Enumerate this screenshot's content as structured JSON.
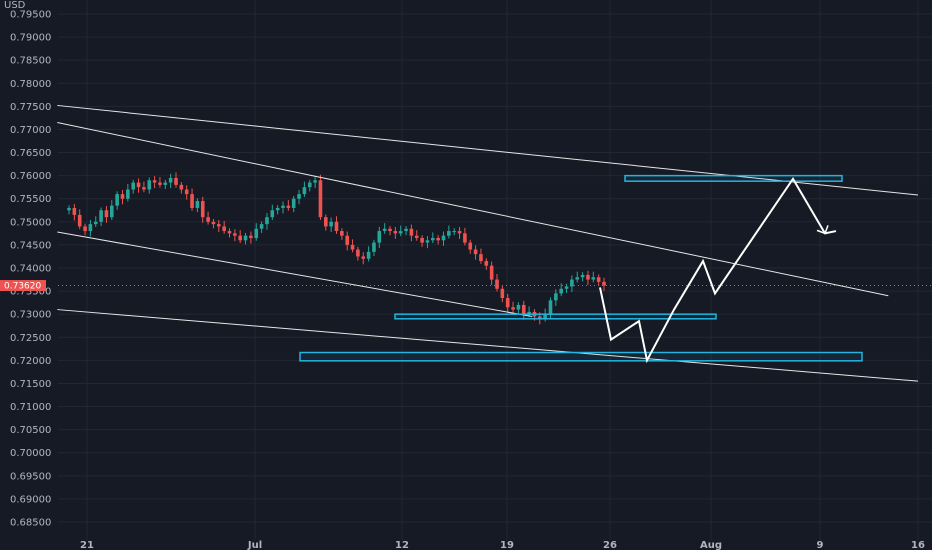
{
  "currency_label": "USD",
  "price_axis": {
    "ticks": [
      "0.79500",
      "0.79000",
      "0.78500",
      "0.78000",
      "0.77500",
      "0.77000",
      "0.76500",
      "0.76000",
      "0.75500",
      "0.75000",
      "0.74500",
      "0.74000",
      "0.73500",
      "0.73000",
      "0.72500",
      "0.72000",
      "0.71500",
      "0.71000",
      "0.70500",
      "0.70000",
      "0.69500",
      "0.69000",
      "0.68500"
    ],
    "current_price": "0.73620",
    "current_price_value": 0.7362
  },
  "time_axis": {
    "labels": [
      "21",
      "Jul",
      "12",
      "19",
      "26",
      "Aug",
      "9",
      "16"
    ]
  },
  "colors": {
    "background": "#161a25",
    "bull": "#26a69a",
    "bear": "#ef5350",
    "zone": "#22b5e0",
    "line": "#e6e6e6",
    "price_tag": "#ef5350",
    "grid": "#232733"
  },
  "chart_data": {
    "type": "candlestick",
    "symbol_quote": "USD",
    "ylim": [
      0.68,
      0.797
    ],
    "grid": true,
    "close_series": [
      0.753,
      0.7515,
      0.749,
      0.748,
      0.7495,
      0.75,
      0.7525,
      0.751,
      0.7535,
      0.756,
      0.755,
      0.757,
      0.7585,
      0.7575,
      0.757,
      0.759,
      0.7585,
      0.758,
      0.7585,
      0.7595,
      0.758,
      0.757,
      0.756,
      0.753,
      0.7545,
      0.751,
      0.75,
      0.7495,
      0.749,
      0.748,
      0.7475,
      0.747,
      0.746,
      0.747,
      0.7465,
      0.7485,
      0.7495,
      0.751,
      0.7525,
      0.753,
      0.7535,
      0.753,
      0.755,
      0.756,
      0.7575,
      0.7585,
      0.759,
      0.751,
      0.749,
      0.75,
      0.748,
      0.747,
      0.745,
      0.744,
      0.7425,
      0.742,
      0.7435,
      0.7455,
      0.748,
      0.7485,
      0.748,
      0.7475,
      0.748,
      0.7485,
      0.747,
      0.7465,
      0.7455,
      0.746,
      0.7465,
      0.746,
      0.747,
      0.748,
      0.748,
      0.7475,
      0.7455,
      0.744,
      0.743,
      0.7415,
      0.7405,
      0.7375,
      0.7355,
      0.7335,
      0.7315,
      0.731,
      0.732,
      0.73,
      0.7305,
      0.7295,
      0.729,
      0.73,
      0.733,
      0.7345,
      0.7355,
      0.736,
      0.7375,
      0.738,
      0.7385,
      0.7375,
      0.738,
      0.737,
      0.7362
    ],
    "drawings": {
      "trendlines": [
        {
          "from": [
            "2021-06-19",
            0.7752
          ],
          "to": [
            "2021-08-16",
            0.7558
          ]
        },
        {
          "from": [
            "2021-06-19",
            0.7715
          ],
          "to": [
            "2021-08-14",
            0.734
          ]
        },
        {
          "from": [
            "2021-06-19",
            0.7478
          ],
          "to": [
            "2021-07-21",
            0.7295
          ]
        },
        {
          "from": [
            "2021-06-19",
            0.731
          ],
          "to": [
            "2021-08-16",
            0.7155
          ]
        }
      ],
      "zones": [
        {
          "price_top": 0.76,
          "price_bottom": 0.7588
        },
        {
          "price_top": 0.73,
          "price_bottom": 0.729
        },
        {
          "price_top": 0.7217,
          "price_bottom": 0.7199
        }
      ],
      "forecast_path": [
        0.7358,
        0.7245,
        0.7285,
        0.72,
        0.731,
        0.7415,
        0.7345,
        0.7593,
        0.7475,
        0.748
      ]
    }
  }
}
